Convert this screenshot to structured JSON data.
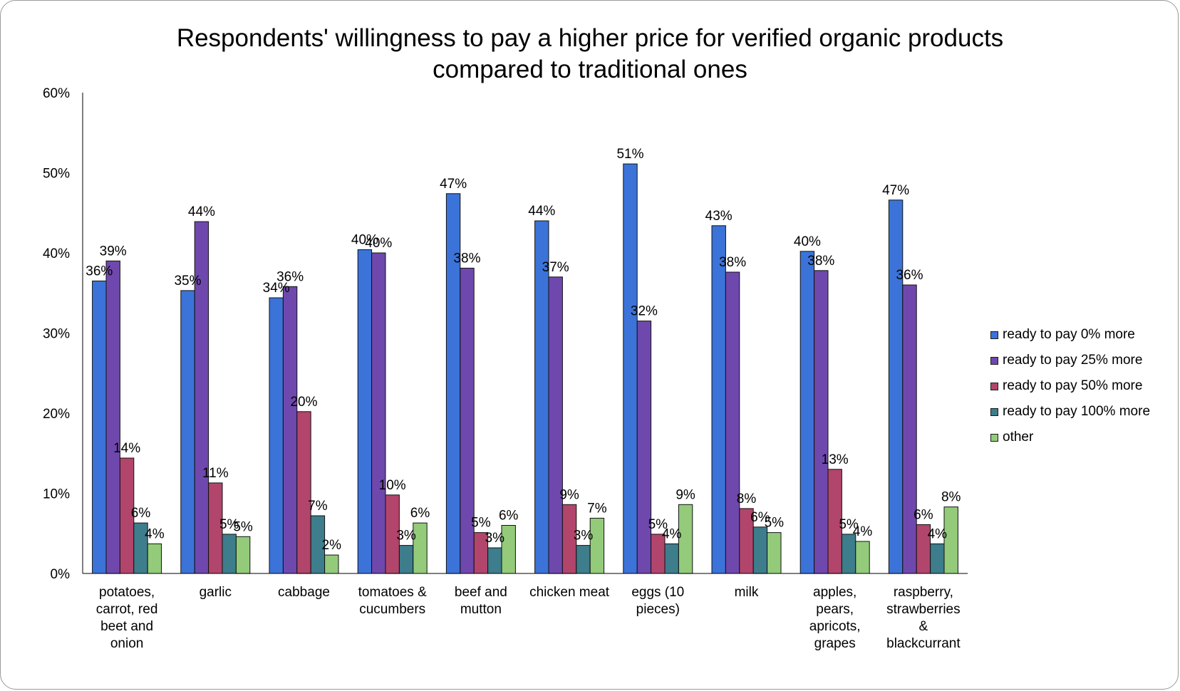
{
  "chart_data": {
    "type": "bar",
    "title": "Respondents' willingness to pay a higher price for verified organic products\ncompared to traditional ones",
    "xlabel": "",
    "ylabel": "",
    "ylim": [
      0,
      60
    ],
    "yticks": [
      "0%",
      "10%",
      "20%",
      "30%",
      "40%",
      "50%",
      "60%"
    ],
    "grid": false,
    "legend_position": "right",
    "categories": [
      "potatoes, carrot, red beet and onion",
      "garlic",
      "cabbage",
      "tomatoes & cucumbers",
      "beef and mutton",
      "chicken meat",
      "eggs (10 pieces)",
      "milk",
      "apples, pears, apricots, grapes",
      "raspberry, strawberries & blackcurrant"
    ],
    "category_lines": [
      [
        "potatoes,",
        "carrot, red",
        "beet and",
        "onion"
      ],
      [
        "garlic"
      ],
      [
        "cabbage"
      ],
      [
        "tomatoes &",
        "cucumbers"
      ],
      [
        "beef and",
        "mutton"
      ],
      [
        "chicken meat"
      ],
      [
        "eggs (10",
        "pieces)"
      ],
      [
        "milk"
      ],
      [
        "apples,",
        "pears,",
        "apricots,",
        "grapes"
      ],
      [
        "raspberry,",
        "strawberries",
        "&",
        "blackcurrant"
      ]
    ],
    "series": [
      {
        "name": "ready to pay 0% more",
        "color": "#3b73d8",
        "values": [
          36.5,
          35.3,
          34.4,
          40.4,
          47.4,
          44.0,
          51.1,
          43.4,
          40.2,
          46.6
        ],
        "labels": [
          "36%",
          "35%",
          "34%",
          "40%",
          "47%",
          "44%",
          "51%",
          "43%",
          "40%",
          "47%"
        ]
      },
      {
        "name": "ready to pay 25% more",
        "color": "#6f48ad",
        "values": [
          39.0,
          43.9,
          35.8,
          40.0,
          38.1,
          37.0,
          31.5,
          37.6,
          37.8,
          36.0
        ],
        "labels": [
          "39%",
          "44%",
          "36%",
          "40%",
          "38%",
          "37%",
          "32%",
          "38%",
          "38%",
          "36%"
        ]
      },
      {
        "name": "ready to pay 50% more",
        "color": "#b2456b",
        "values": [
          14.4,
          11.3,
          20.2,
          9.8,
          5.1,
          8.6,
          4.9,
          8.1,
          13.0,
          6.1
        ],
        "labels": [
          "14%",
          "11%",
          "20%",
          "10%",
          "5%",
          "9%",
          "5%",
          "8%",
          "13%",
          "6%"
        ]
      },
      {
        "name": "ready to pay 100% more",
        "color": "#3d7d8c",
        "values": [
          6.3,
          4.9,
          7.2,
          3.5,
          3.2,
          3.5,
          3.7,
          5.8,
          4.9,
          3.7
        ],
        "labels": [
          "6%",
          "5%",
          "7%",
          "3%",
          "3%",
          "3%",
          "4%",
          "6%",
          "5%",
          "4%"
        ]
      },
      {
        "name": "other",
        "color": "#93cb7a",
        "values": [
          3.7,
          4.6,
          2.3,
          6.3,
          6.0,
          6.9,
          8.6,
          5.1,
          4.0,
          8.3
        ],
        "labels": [
          "4%",
          "5%",
          "2%",
          "6%",
          "6%",
          "7%",
          "9%",
          "5%",
          "4%",
          "8%"
        ]
      }
    ]
  }
}
